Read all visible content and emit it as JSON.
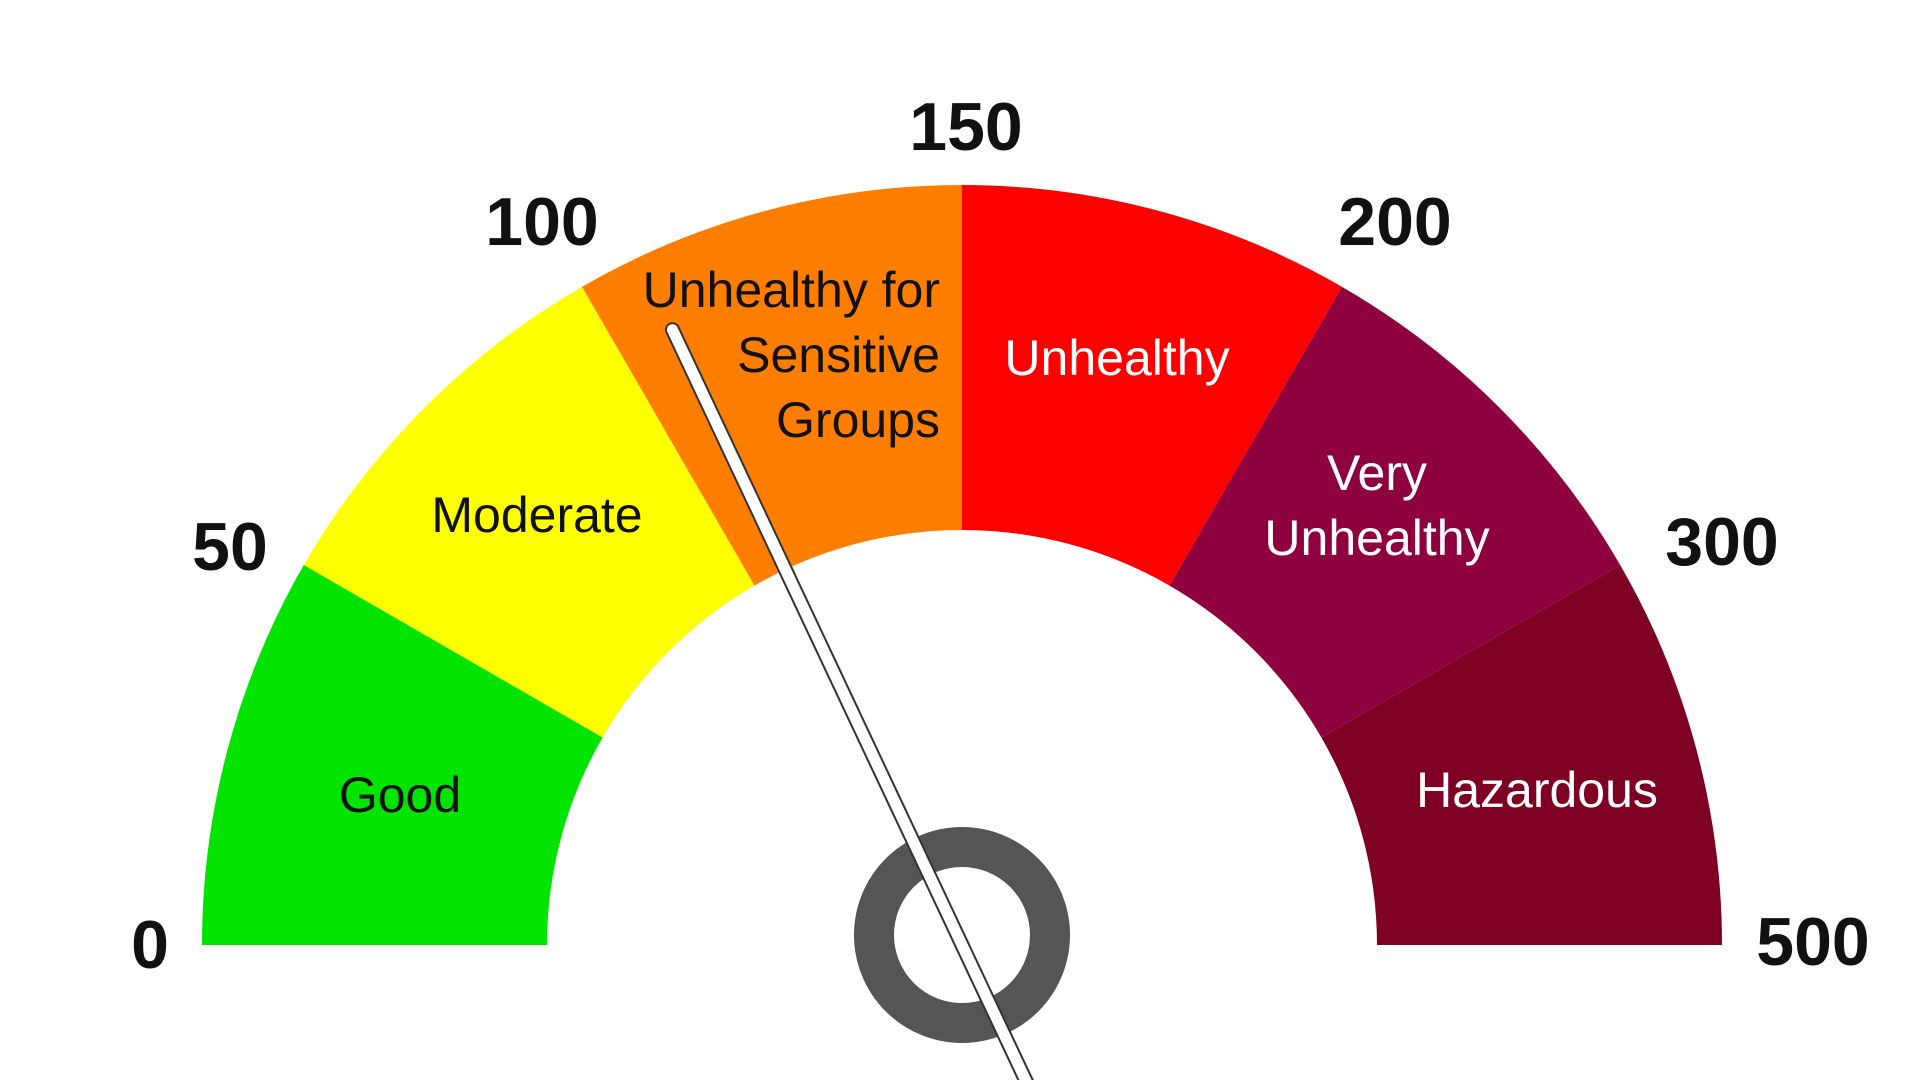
{
  "gauge": {
    "scale_ticks": [
      "0",
      "50",
      "100",
      "150",
      "200",
      "300",
      "500"
    ],
    "segments": [
      {
        "label_lines": [
          "Good"
        ],
        "range": [
          0,
          50
        ],
        "color": "#00e400",
        "text_color": "#111111"
      },
      {
        "label_lines": [
          "Moderate"
        ],
        "range": [
          51,
          100
        ],
        "color": "#ffff00",
        "text_color": "#111111"
      },
      {
        "label_lines": [
          "Unhealthy for",
          "Sensitive",
          "Groups"
        ],
        "range": [
          101,
          150
        ],
        "color": "#ff7e00",
        "text_color": "#111111"
      },
      {
        "label_lines": [
          "Unhealthy"
        ],
        "range": [
          151,
          200
        ],
        "color": "#ff0000",
        "text_color": "#ffffff"
      },
      {
        "label_lines": [
          "Very",
          "Unhealthy"
        ],
        "range": [
          201,
          300
        ],
        "color": "#8f003f",
        "text_color": "#ffffff"
      },
      {
        "label_lines": [
          "Hazardous"
        ],
        "range": [
          301,
          500
        ],
        "color": "#7e0023",
        "text_color": "#ffffff"
      }
    ],
    "needle_value": 108,
    "hub_color": "#555555",
    "needle_color": "#ffffff"
  }
}
